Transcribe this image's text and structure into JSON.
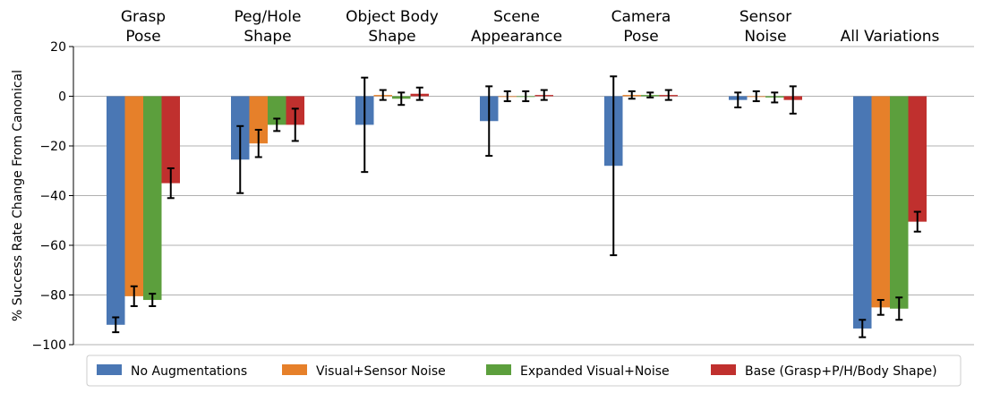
{
  "chart_data": {
    "type": "bar",
    "categories": [
      [
        "Grasp",
        "Pose"
      ],
      [
        "Peg/Hole",
        "Shape"
      ],
      [
        "Object Body",
        "Shape"
      ],
      [
        "Scene",
        "Appearance"
      ],
      [
        "Camera",
        "Pose"
      ],
      [
        "Sensor",
        "Noise"
      ],
      [
        "All Variations"
      ]
    ],
    "ylabel": "% Success Rate Change From Canonical",
    "ylim": [
      -100,
      20
    ],
    "yticks": [
      -100,
      -80,
      -60,
      -40,
      -20,
      0,
      20
    ],
    "ytick_labels": [
      "−100",
      "−80",
      "−60",
      "−40",
      "−20",
      "0",
      "20"
    ],
    "grid": true,
    "legend_position": "bottom",
    "series": [
      {
        "name": "No Augmentations",
        "color": "#4a77b4",
        "values": [
          -92,
          -25.5,
          -11.5,
          -10,
          -28,
          -1.5,
          -93.5
        ],
        "errors": [
          3,
          13.5,
          19,
          14,
          36,
          3,
          3.5
        ]
      },
      {
        "name": "Visual+Sensor Noise",
        "color": "#e6802a",
        "values": [
          -80.5,
          -19,
          0.5,
          0,
          0.5,
          0,
          -85
        ],
        "errors": [
          4,
          5.5,
          2,
          2,
          1.5,
          2,
          3
        ]
      },
      {
        "name": "Expanded Visual+Noise",
        "color": "#5c9f3d",
        "values": [
          -82,
          -11.5,
          -1,
          0,
          0.5,
          -0.5,
          -85.5
        ],
        "errors": [
          2.5,
          2.5,
          2.5,
          2,
          1,
          2,
          4.5
        ]
      },
      {
        "name": "Base (Grasp+P/H/Body Shape)",
        "color": "#c0302e",
        "values": [
          -35,
          -11.5,
          1,
          0.5,
          0.5,
          -1.5,
          -50.5
        ],
        "errors": [
          6,
          6.5,
          2.5,
          2,
          2,
          5.5,
          4
        ]
      }
    ]
  }
}
